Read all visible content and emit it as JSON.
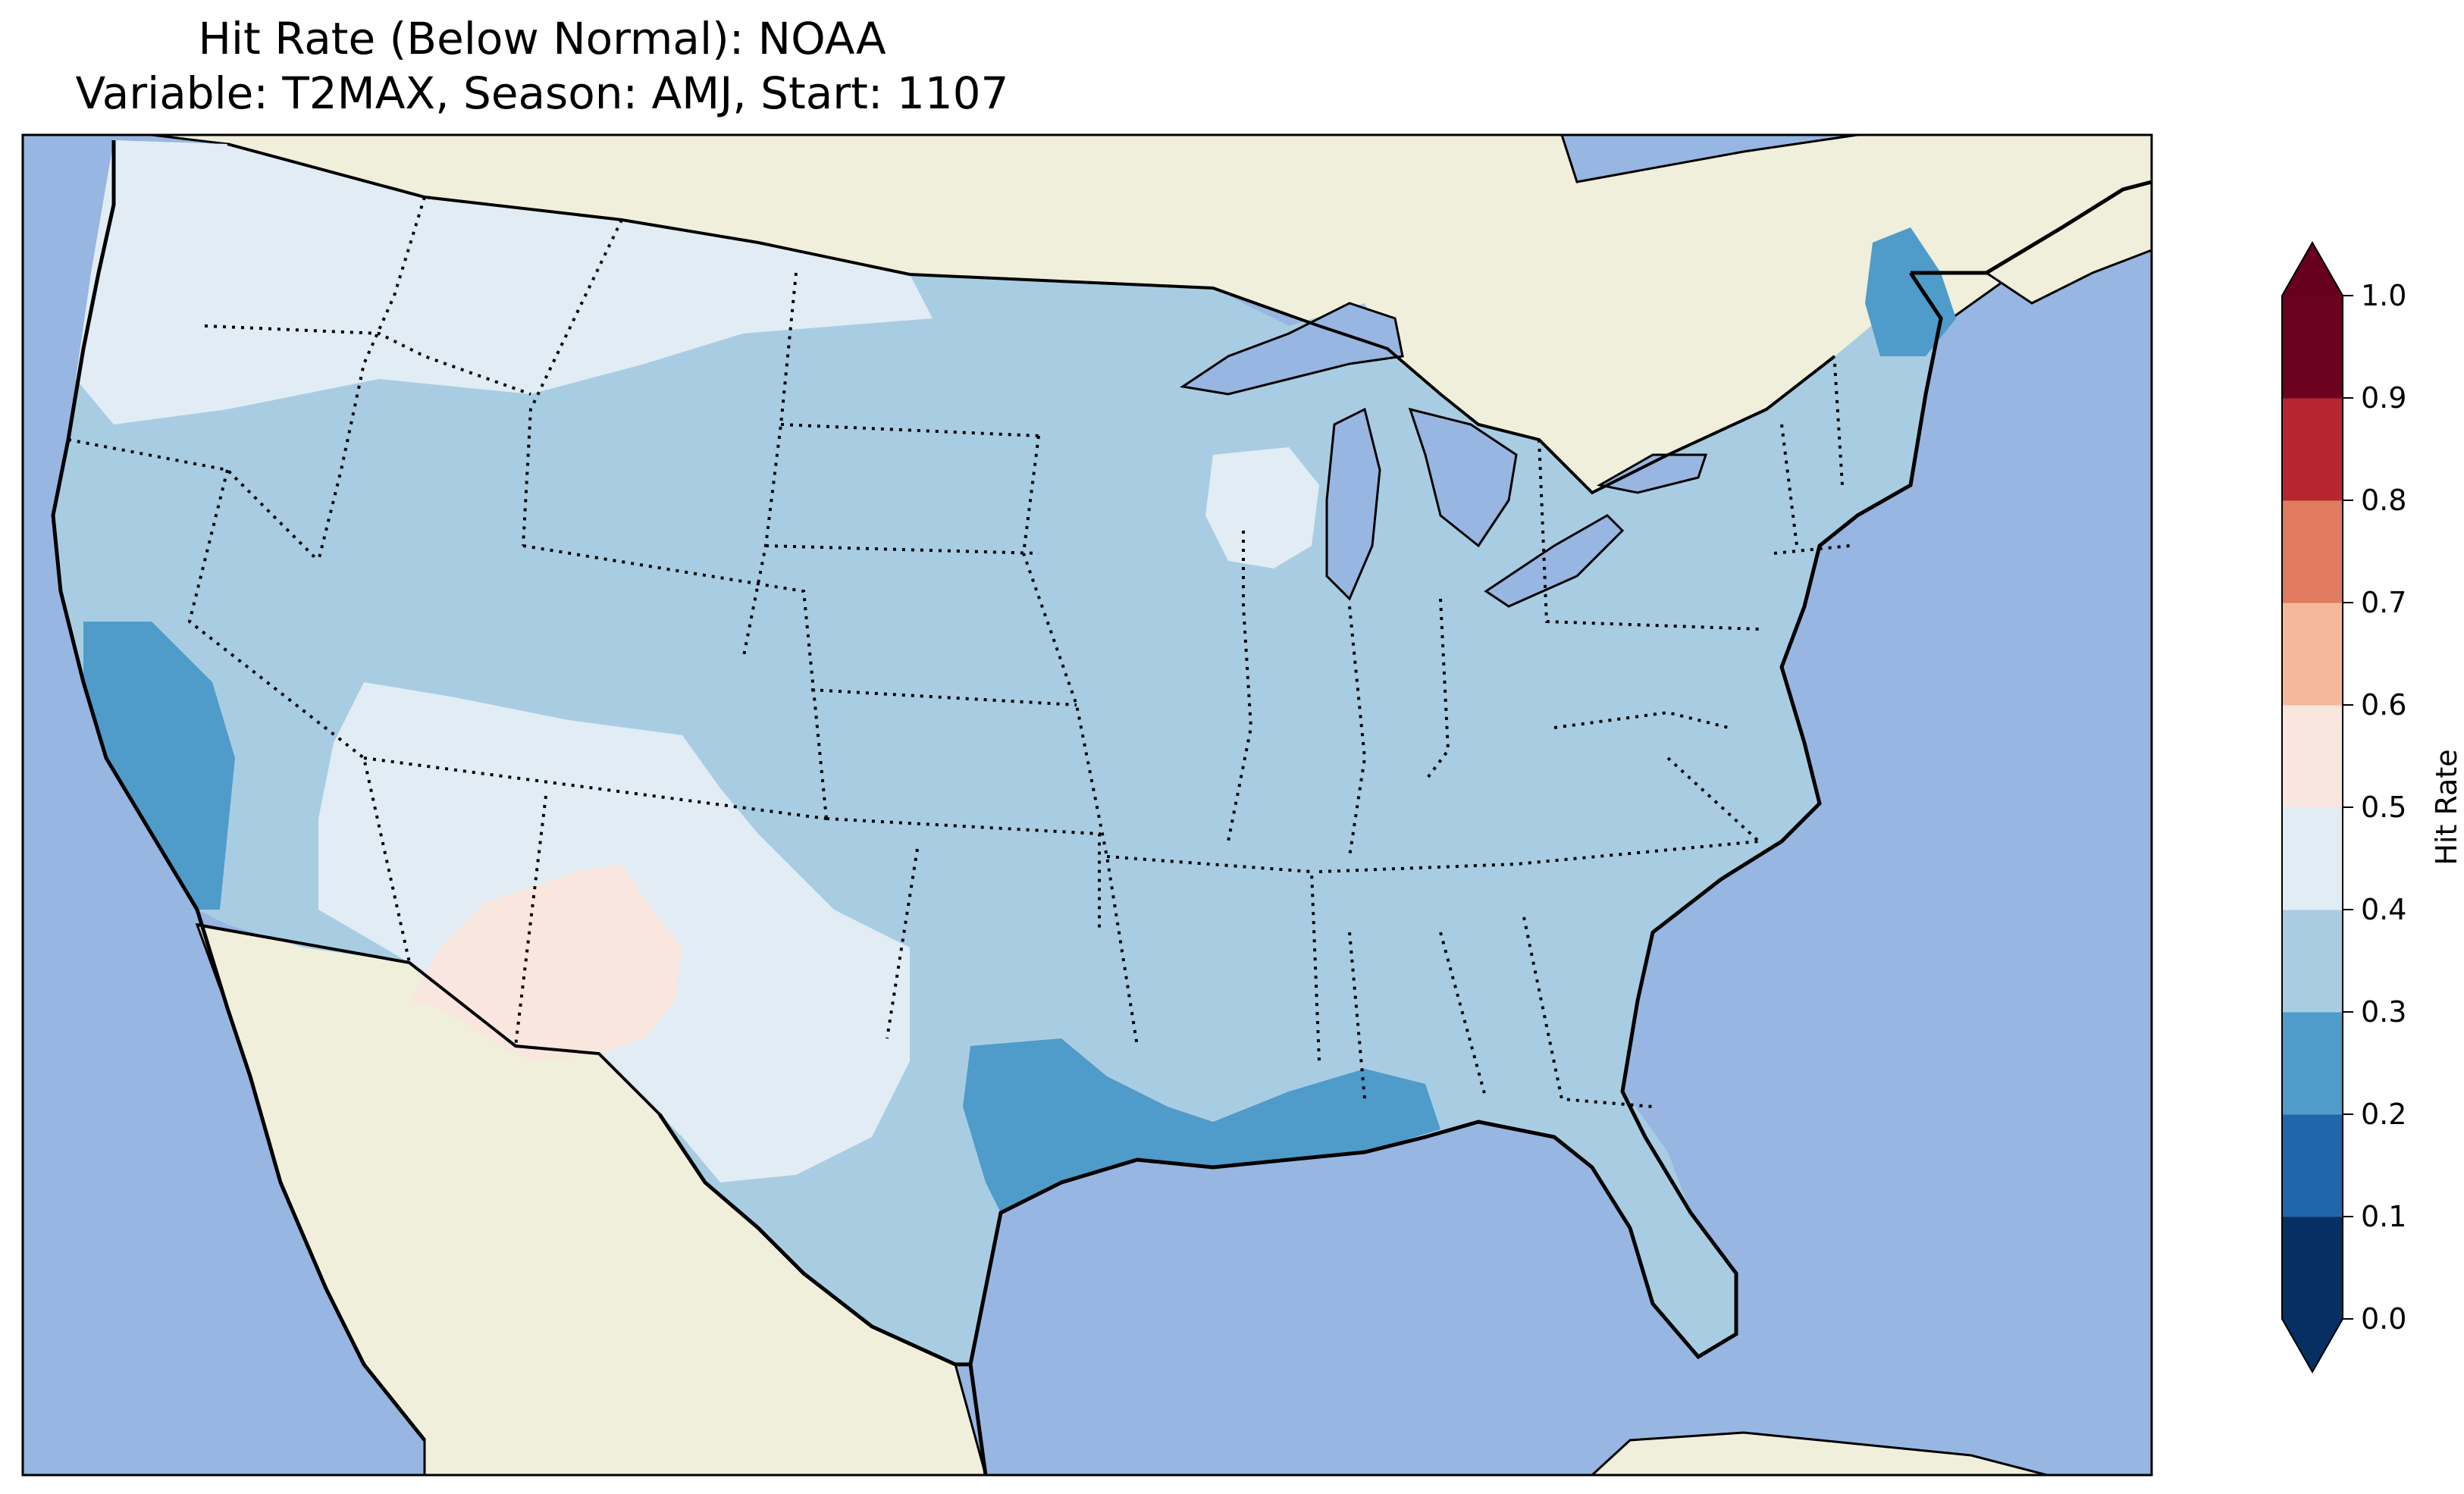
{
  "title": {
    "line1": "Hit Rate (Below Normal): NOAA",
    "line2": "Variable: T2MAX, Season: AMJ, Start: 1107"
  },
  "colors": {
    "ocean": "#97b6e1",
    "land": "#efefdb",
    "bins": [
      "#053061",
      "#2166ac",
      "#4393c3",
      "#92c5de",
      "#d1e5f0",
      "#f7f7f7",
      "#fddbc7",
      "#f4a582",
      "#d6604d",
      "#b2182b",
      "#67001f"
    ],
    "cmap": [
      "#053061",
      "#2166ac",
      "#4f9bc9",
      "#a8cde3",
      "#e1ecf4",
      "#f9e6de",
      "#f6b89d",
      "#e07b5f",
      "#b7252e",
      "#6a0220"
    ]
  },
  "colorbar": {
    "label": "Hit Rate",
    "ticks": [
      "0.0",
      "0.1",
      "0.2",
      "0.3",
      "0.4",
      "0.5",
      "0.6",
      "0.7",
      "0.8",
      "0.9",
      "1.0"
    ],
    "extend": "both"
  },
  "map": {
    "region": "CONUS",
    "lon_range": [
      -125,
      -66
    ],
    "lat_range": [
      24,
      50
    ],
    "regions": [
      {
        "name": "northwest",
        "value": 0.42
      },
      {
        "name": "great-plains",
        "value": 0.35
      },
      {
        "name": "california-coast",
        "value": 0.25
      },
      {
        "name": "southwest",
        "value": 0.45
      },
      {
        "name": "arizona-new-mexico",
        "value": 0.52
      },
      {
        "name": "midwest",
        "value": 0.35
      },
      {
        "name": "east-texas-louisiana",
        "value": 0.25
      },
      {
        "name": "florida",
        "value": 0.35
      },
      {
        "name": "maine",
        "value": 0.25
      },
      {
        "name": "wisconsin",
        "value": 0.45
      },
      {
        "name": "southeast",
        "value": 0.35
      }
    ]
  }
}
